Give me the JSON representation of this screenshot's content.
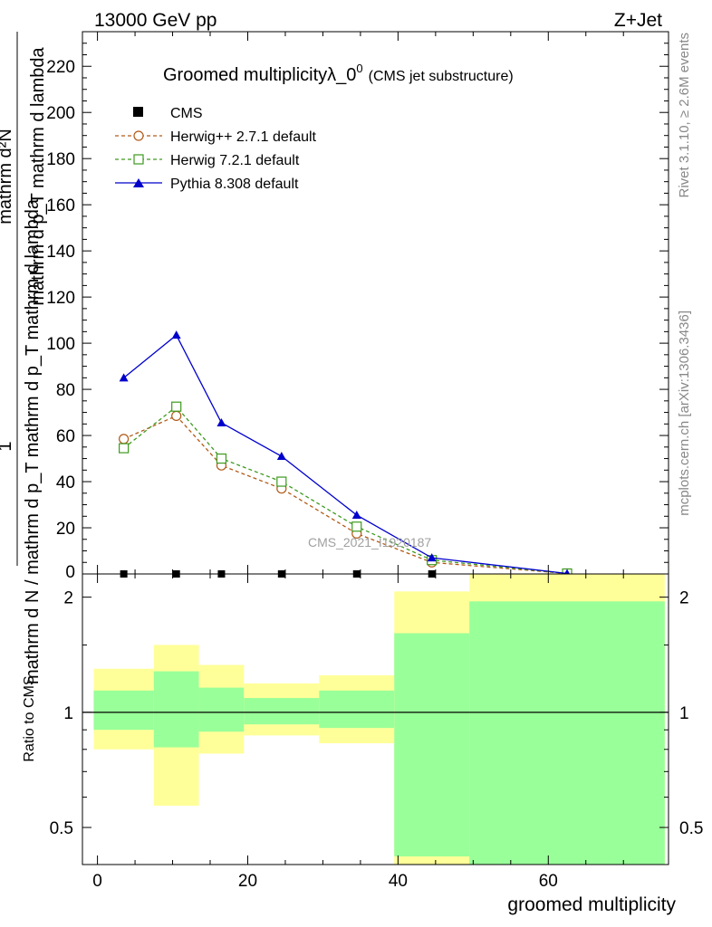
{
  "header": {
    "left": "13000 GeV pp",
    "right": "Z+Jet"
  },
  "side_labels": {
    "rivet": "Rivet 3.1.10, ≥ 2.6M events",
    "mcplots": "mcplots.cern.ch [arXiv:1306.3436]"
  },
  "watermark": "CMS_2021_I1920187",
  "chart_data": [
    {
      "type": "line",
      "title": "Groomed multiplicityλ_0",
      "title_sup": "0",
      "title_suffix": "(CMS jet substructure)",
      "ylabel_top": "mathrm d²N",
      "ylabel_top_2": "mathrm d p_T mathrm d lambda",
      "ylabel_one": "1",
      "ylabel_bottom": "mathrm d N / mathrm d p_T mathrm d p_T mathrm d lambda",
      "xlim": [
        -2,
        76
      ],
      "ylim": [
        0,
        235
      ],
      "yticks": [
        "20",
        "40",
        "60",
        "80",
        "100",
        "120",
        "140",
        "160",
        "180",
        "200",
        "220"
      ],
      "yticks_values": [
        20,
        40,
        60,
        80,
        100,
        120,
        140,
        160,
        180,
        200,
        220
      ],
      "ytick_zero": "0",
      "legend_position": "top-left",
      "series": [
        {
          "name": "CMS",
          "color": "#000000",
          "marker": "square-filled",
          "x": [
            3.5,
            10.5,
            16.5,
            24.5,
            34.5,
            44.5,
            62.5
          ],
          "y": [
            0,
            0,
            0,
            0,
            0,
            0,
            0
          ]
        },
        {
          "name": "Herwig++ 2.7.1 default",
          "color": "#b25a17",
          "marker": "circle-open",
          "dash": true,
          "x": [
            3.5,
            10.5,
            16.5,
            24.5,
            34.5,
            44.5,
            62.5
          ],
          "y": [
            58.5,
            68.5,
            47,
            37,
            17.5,
            5,
            0.2
          ]
        },
        {
          "name": "Herwig 7.2.1 default",
          "color": "#3d9a1e",
          "marker": "square-open",
          "dash": true,
          "x": [
            3.5,
            10.5,
            16.5,
            24.5,
            34.5,
            44.5,
            62.5
          ],
          "y": [
            54.5,
            72.5,
            50,
            40,
            20.5,
            6,
            0.2
          ]
        },
        {
          "name": "Pythia 8.308 default",
          "color": "#0000cc",
          "marker": "triangle-filled",
          "x": [
            3.5,
            10.5,
            16.5,
            24.5,
            34.5,
            44.5,
            62.5
          ],
          "y": [
            85,
            103.5,
            65.5,
            51,
            25.5,
            7,
            0.2
          ]
        }
      ]
    },
    {
      "type": "area",
      "ylabel": "Ratio to CMS",
      "xlabel": "groomed multiplicity",
      "log_scale_y": true,
      "ylim": [
        0.4,
        2.3
      ],
      "yticks": [
        "0.5",
        "1",
        "2"
      ],
      "yticks_values": [
        0.5,
        1,
        2
      ],
      "xticks": [
        "0",
        "20",
        "40",
        "60"
      ],
      "xticks_values": [
        0,
        20,
        40,
        60
      ],
      "reference_line": 1,
      "bins": [
        {
          "lo": -0.5,
          "hi": 7.5,
          "inner": [
            0.9,
            1.14
          ],
          "outer": [
            0.8,
            1.3
          ]
        },
        {
          "lo": 7.5,
          "hi": 13.5,
          "inner": [
            0.81,
            1.28
          ],
          "outer": [
            0.57,
            1.5
          ]
        },
        {
          "lo": 13.5,
          "hi": 19.5,
          "inner": [
            0.89,
            1.16
          ],
          "outer": [
            0.78,
            1.33
          ]
        },
        {
          "lo": 19.5,
          "hi": 29.5,
          "inner": [
            0.93,
            1.09
          ],
          "outer": [
            0.87,
            1.19
          ]
        },
        {
          "lo": 29.5,
          "hi": 39.5,
          "inner": [
            0.91,
            1.14
          ],
          "outer": [
            0.83,
            1.25
          ]
        },
        {
          "lo": 39.5,
          "hi": 49.5,
          "inner": [
            0.42,
            1.61
          ],
          "outer": [
            0.38,
            2.07
          ]
        },
        {
          "lo": 49.5,
          "hi": 75.5,
          "inner": [
            0.38,
            1.95
          ],
          "outer": [
            0.38,
            2.5
          ]
        }
      ],
      "colors": {
        "inner": "#99ff99",
        "outer": "#ffff99"
      }
    }
  ]
}
